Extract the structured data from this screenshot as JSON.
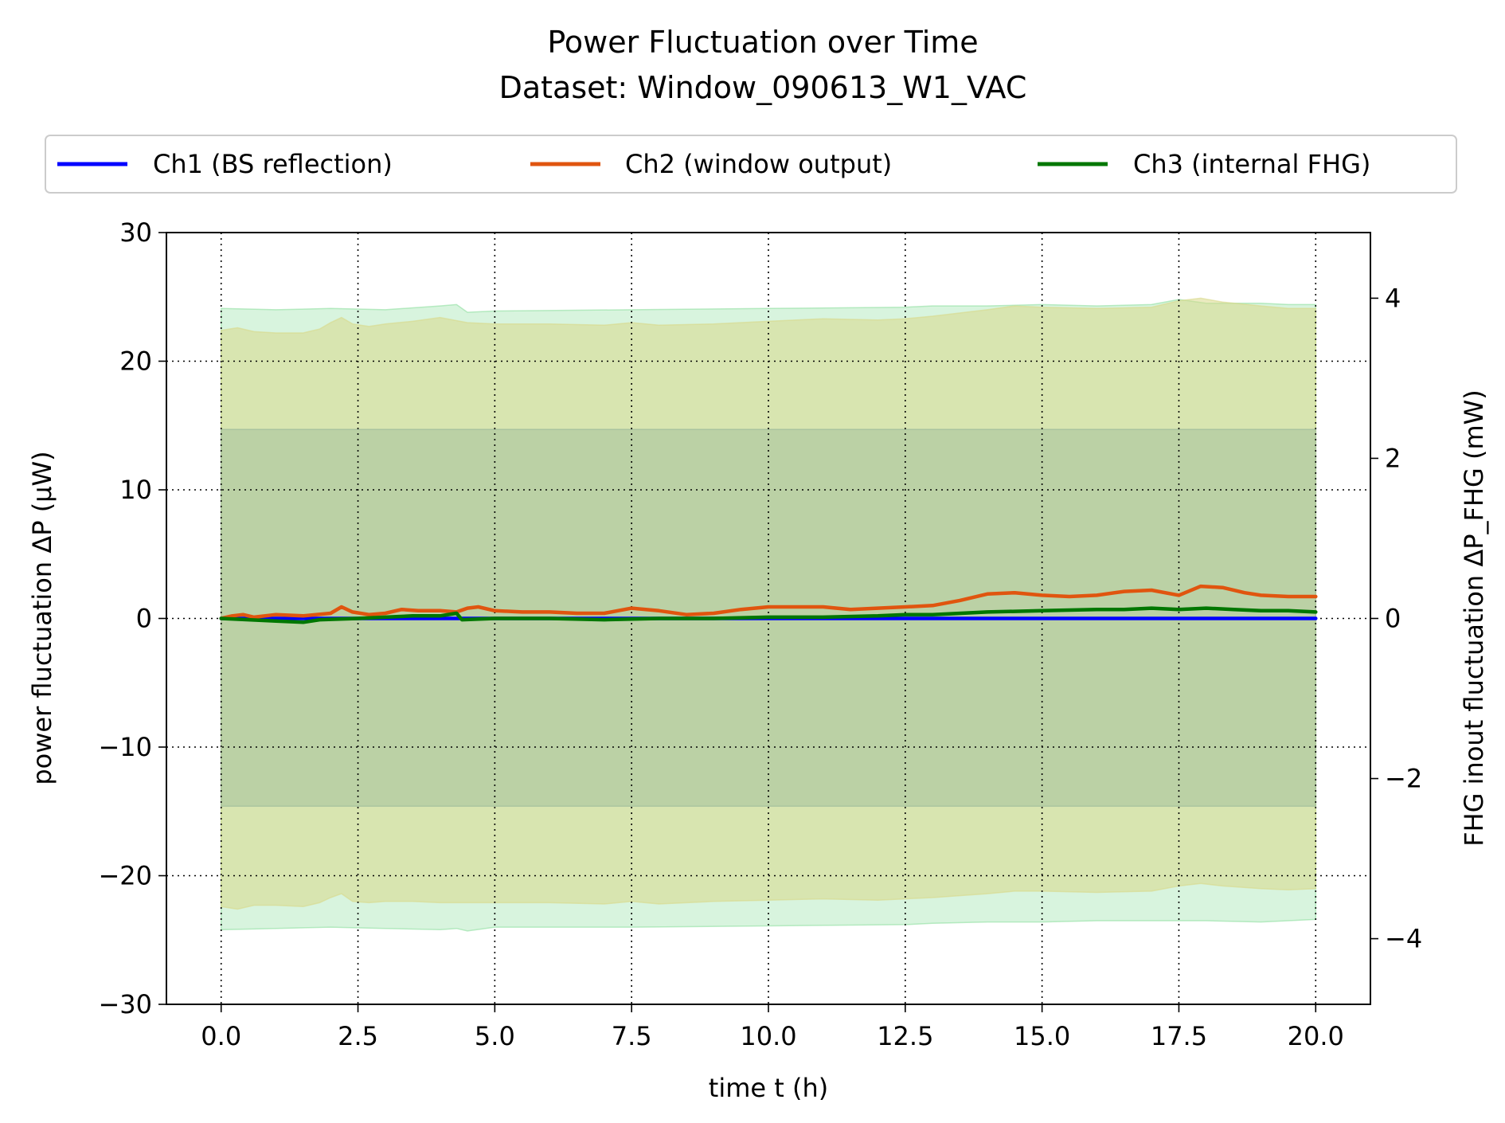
{
  "chart_data": {
    "type": "line",
    "title": "Power Fluctuation over Time",
    "subtitle": "Dataset: Window_090613_W1_VAC",
    "xlabel": "time t (h)",
    "ylabel": "power fluctuation ΔP (μW)",
    "ylabel_right": "FHG inout fluctuation ΔP_FHG (mW)",
    "xlim": [
      -1.0,
      21.0
    ],
    "ylim": [
      -30,
      30
    ],
    "ylim_right": [
      -4.82,
      4.82
    ],
    "xticks": [
      "0.0",
      "2.5",
      "5.0",
      "7.5",
      "10.0",
      "12.5",
      "15.0",
      "17.5",
      "20.0"
    ],
    "xtick_values": [
      0,
      2.5,
      5,
      7.5,
      10,
      12.5,
      15,
      17.5,
      20
    ],
    "yticks": [
      "−30",
      "−20",
      "−10",
      "0",
      "10",
      "20",
      "30"
    ],
    "ytick_values": [
      -30,
      -20,
      -10,
      0,
      10,
      20,
      30
    ],
    "yticks_right": [
      "−4",
      "−2",
      "0",
      "2",
      "4"
    ],
    "ytick_values_right": [
      -4,
      -2,
      0,
      2,
      4
    ],
    "grid": true,
    "legend_position": "top-center",
    "series": [
      {
        "name": "Ch1 (BS reflection)",
        "color": "#0000ff",
        "axis": "left",
        "x": [
          0,
          5,
          10,
          15,
          20
        ],
        "values": [
          0.0,
          0.0,
          0.0,
          0.0,
          0.0
        ]
      },
      {
        "name": "Ch2 (window output)",
        "color": "#e0550f",
        "axis": "left",
        "x": [
          0,
          0.2,
          0.4,
          0.6,
          1.0,
          1.5,
          2.0,
          2.2,
          2.4,
          2.7,
          3.0,
          3.3,
          3.6,
          4.0,
          4.3,
          4.5,
          4.7,
          5.0,
          5.5,
          6.0,
          6.5,
          7.0,
          7.5,
          8.0,
          8.5,
          9.0,
          9.5,
          10.0,
          10.5,
          11.0,
          11.5,
          12.0,
          12.5,
          13.0,
          13.5,
          14.0,
          14.5,
          15.0,
          15.5,
          16.0,
          16.5,
          17.0,
          17.5,
          17.9,
          18.3,
          18.7,
          19.0,
          19.5,
          20.0
        ],
        "values": [
          0.0,
          0.2,
          0.3,
          0.1,
          0.3,
          0.2,
          0.4,
          0.9,
          0.5,
          0.3,
          0.4,
          0.7,
          0.6,
          0.6,
          0.5,
          0.8,
          0.9,
          0.6,
          0.5,
          0.5,
          0.4,
          0.4,
          0.8,
          0.6,
          0.3,
          0.4,
          0.7,
          0.9,
          0.9,
          0.9,
          0.7,
          0.8,
          0.9,
          1.0,
          1.4,
          1.9,
          2.0,
          1.8,
          1.7,
          1.8,
          2.1,
          2.2,
          1.8,
          2.5,
          2.4,
          2.0,
          1.8,
          1.7,
          1.7
        ]
      },
      {
        "name": "Ch3 (internal FHG)",
        "color": "#007700",
        "axis": "left",
        "x": [
          0,
          0.5,
          1.0,
          1.5,
          1.8,
          2.5,
          3.0,
          3.5,
          4.0,
          4.3,
          4.4,
          5.0,
          6.0,
          7.0,
          8.0,
          9.0,
          10.0,
          11.0,
          12.0,
          12.5,
          13.0,
          14.0,
          15.0,
          16.0,
          16.5,
          17.0,
          17.5,
          18.0,
          18.5,
          19.0,
          19.5,
          20.0
        ],
        "values": [
          0.0,
          -0.1,
          -0.2,
          -0.3,
          -0.1,
          0.0,
          0.1,
          0.2,
          0.2,
          0.4,
          -0.1,
          0.0,
          0.0,
          -0.1,
          0.0,
          0.0,
          0.1,
          0.1,
          0.2,
          0.3,
          0.3,
          0.5,
          0.6,
          0.7,
          0.7,
          0.8,
          0.7,
          0.8,
          0.7,
          0.6,
          0.6,
          0.5
        ]
      }
    ],
    "bands": [
      {
        "color": "#90e0a0",
        "opacity": 0.35,
        "x": [
          0,
          1.0,
          2.0,
          3.0,
          4.0,
          4.3,
          4.5,
          5.0,
          7.5,
          10.0,
          12.5,
          13.0,
          14.0,
          15.0,
          16.0,
          17.0,
          17.5,
          18.0,
          19.0,
          19.5,
          20.0
        ],
        "upper": [
          24.1,
          24.0,
          24.1,
          24.0,
          24.3,
          24.4,
          23.8,
          23.9,
          24.0,
          24.1,
          24.2,
          24.3,
          24.3,
          24.4,
          24.3,
          24.4,
          24.8,
          24.5,
          24.5,
          24.4,
          24.4
        ],
        "lower": [
          -24.2,
          -24.1,
          -24.0,
          -24.1,
          -24.2,
          -24.1,
          -24.3,
          -24.0,
          -24.0,
          -23.9,
          -23.8,
          -23.7,
          -23.6,
          -23.6,
          -23.5,
          -23.5,
          -23.5,
          -23.5,
          -23.6,
          -23.5,
          -23.4
        ]
      },
      {
        "color": "#d9d98a",
        "opacity": 0.55,
        "x": [
          0,
          0.3,
          0.6,
          1.0,
          1.5,
          1.8,
          2.0,
          2.2,
          2.4,
          2.7,
          3.0,
          3.5,
          4.0,
          4.5,
          5.0,
          6.0,
          7.0,
          7.5,
          8.0,
          9.0,
          10.0,
          11.0,
          12.0,
          12.5,
          13.0,
          14.0,
          14.5,
          15.0,
          16.0,
          17.0,
          17.5,
          17.9,
          18.3,
          19.0,
          19.5,
          20.0
        ],
        "upper": [
          22.4,
          22.6,
          22.3,
          22.2,
          22.2,
          22.5,
          23.0,
          23.4,
          22.9,
          22.7,
          22.9,
          23.1,
          23.4,
          23.0,
          22.9,
          22.9,
          22.8,
          23.0,
          22.8,
          22.9,
          23.1,
          23.3,
          23.2,
          23.3,
          23.5,
          24.0,
          24.3,
          24.2,
          24.1,
          24.2,
          24.7,
          24.9,
          24.6,
          24.3,
          24.1,
          24.1
        ],
        "lower": [
          -22.4,
          -22.6,
          -22.3,
          -22.3,
          -22.4,
          -22.1,
          -21.7,
          -21.4,
          -22.0,
          -22.1,
          -22.0,
          -22.0,
          -22.1,
          -22.1,
          -22.1,
          -22.1,
          -22.2,
          -22.0,
          -22.2,
          -22.0,
          -21.9,
          -21.8,
          -21.9,
          -21.8,
          -21.7,
          -21.4,
          -21.2,
          -21.2,
          -21.3,
          -21.2,
          -20.8,
          -20.6,
          -20.8,
          -21.0,
          -21.1,
          -21.0
        ]
      },
      {
        "color": "#99b899",
        "opacity": 0.45,
        "x": [
          0,
          20.0
        ],
        "upper": [
          14.7,
          14.7
        ],
        "lower": [
          -14.6,
          -14.6
        ]
      }
    ]
  }
}
